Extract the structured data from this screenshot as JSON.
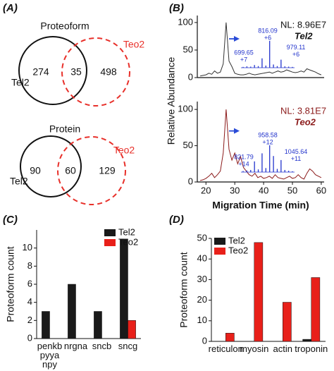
{
  "panel_labels": [
    "(A)",
    "(B)",
    "(C)",
    "(D)"
  ],
  "chart_data": [
    {
      "type": "venn",
      "title": "Proteoform",
      "sets": [
        {
          "name": "Tel2",
          "color": "#111111",
          "dashed": false
        },
        {
          "name": "Teo2",
          "color": "#e8302a",
          "dashed": true
        }
      ],
      "values": [
        274,
        35,
        498
      ]
    },
    {
      "type": "venn",
      "title": "Protein",
      "sets": [
        {
          "name": "Tel2",
          "color": "#111111",
          "dashed": false
        },
        {
          "name": "Teo2",
          "color": "#e8302a",
          "dashed": true
        }
      ],
      "values": [
        90,
        60,
        129
      ]
    },
    {
      "type": "line",
      "xlabel": "Migration Time (min)",
      "ylabel": "Relative Abundance",
      "x": [
        18,
        19,
        20,
        21,
        22,
        23,
        24,
        25,
        26,
        27,
        28,
        29,
        30,
        31,
        32,
        33,
        34,
        35,
        36,
        37,
        38,
        39,
        40,
        41,
        42,
        43,
        44,
        45,
        46,
        47,
        48,
        49,
        50,
        51,
        52,
        53,
        54,
        55,
        56,
        57,
        58,
        59,
        60
      ],
      "xlim": [
        17,
        61
      ],
      "xticks": [
        20,
        30,
        40,
        50,
        60
      ],
      "ylim": [
        0,
        105
      ],
      "yticks": [
        0,
        50,
        100
      ],
      "series": [
        {
          "name": "Tel2",
          "color": "#333333",
          "label_color": "#111111",
          "nl": "NL: 8.96E7",
          "values": [
            3,
            4,
            5,
            8,
            6,
            12,
            8,
            10,
            25,
            100,
            30,
            20,
            8,
            6,
            5,
            5,
            6,
            8,
            6,
            5,
            6,
            7,
            8,
            9,
            10,
            8,
            10,
            12,
            10,
            11,
            14,
            12,
            10,
            9,
            10,
            12,
            10,
            16,
            14,
            12,
            10,
            7,
            5
          ],
          "inset_labels": [
            {
              "text": "699.65",
              "charge": "+7"
            },
            {
              "text": "816.09",
              "charge": "+6"
            },
            {
              "text": "979.11",
              "charge": "+6"
            }
          ],
          "inset_peaks": [
            3,
            5,
            4,
            10,
            6,
            35,
            8,
            100,
            12,
            6,
            30,
            5,
            4,
            3
          ]
        },
        {
          "name": "Teo2",
          "color": "#8b1a1a",
          "label_color": "#8b1a1a",
          "nl": "NL: 3.81E7",
          "values": [
            2,
            3,
            5,
            8,
            12,
            6,
            10,
            15,
            40,
            100,
            45,
            30,
            40,
            25,
            35,
            20,
            15,
            10,
            8,
            12,
            6,
            8,
            5,
            6,
            8,
            5,
            10,
            6,
            5,
            4,
            6,
            8,
            5,
            6,
            10,
            6,
            4,
            12,
            18,
            15,
            10,
            8,
            6
          ],
          "inset_labels": [
            {
              "text": "821.79",
              "charge": "+14"
            },
            {
              "text": "958.58",
              "charge": "+12"
            },
            {
              "text": "1045.64",
              "charge": "+11"
            }
          ],
          "inset_peaks": [
            4,
            6,
            8,
            40,
            10,
            70,
            15,
            100,
            60,
            12,
            45,
            8,
            5,
            3
          ]
        }
      ]
    },
    {
      "type": "bar",
      "ylabel": "Proteoform count",
      "categories": [
        "penkb\npyya\nnpy",
        "nrgna",
        "sncb",
        "sncg"
      ],
      "ylim": [
        0,
        12
      ],
      "yticks": [
        0,
        2,
        4,
        6,
        8,
        10
      ],
      "legend": "upper right",
      "series": [
        {
          "name": "Tel2",
          "color": "#1a1a1a",
          "values": [
            3,
            6,
            3,
            11
          ]
        },
        {
          "name": "Teo2",
          "color": "#e8201a",
          "values": [
            0,
            0,
            0,
            2
          ]
        }
      ]
    },
    {
      "type": "bar",
      "ylabel": "Proteoform count",
      "categories": [
        "reticulon",
        "myosin",
        "actin",
        "troponin"
      ],
      "ylim": [
        0,
        50
      ],
      "yticks": [
        0,
        10,
        20,
        30,
        40,
        50
      ],
      "legend": "upper left",
      "series": [
        {
          "name": "Tel2",
          "color": "#1a1a1a",
          "values": [
            0,
            0,
            0,
            1
          ]
        },
        {
          "name": "Teo2",
          "color": "#e8201a",
          "values": [
            4,
            48,
            19,
            31
          ]
        }
      ]
    }
  ]
}
